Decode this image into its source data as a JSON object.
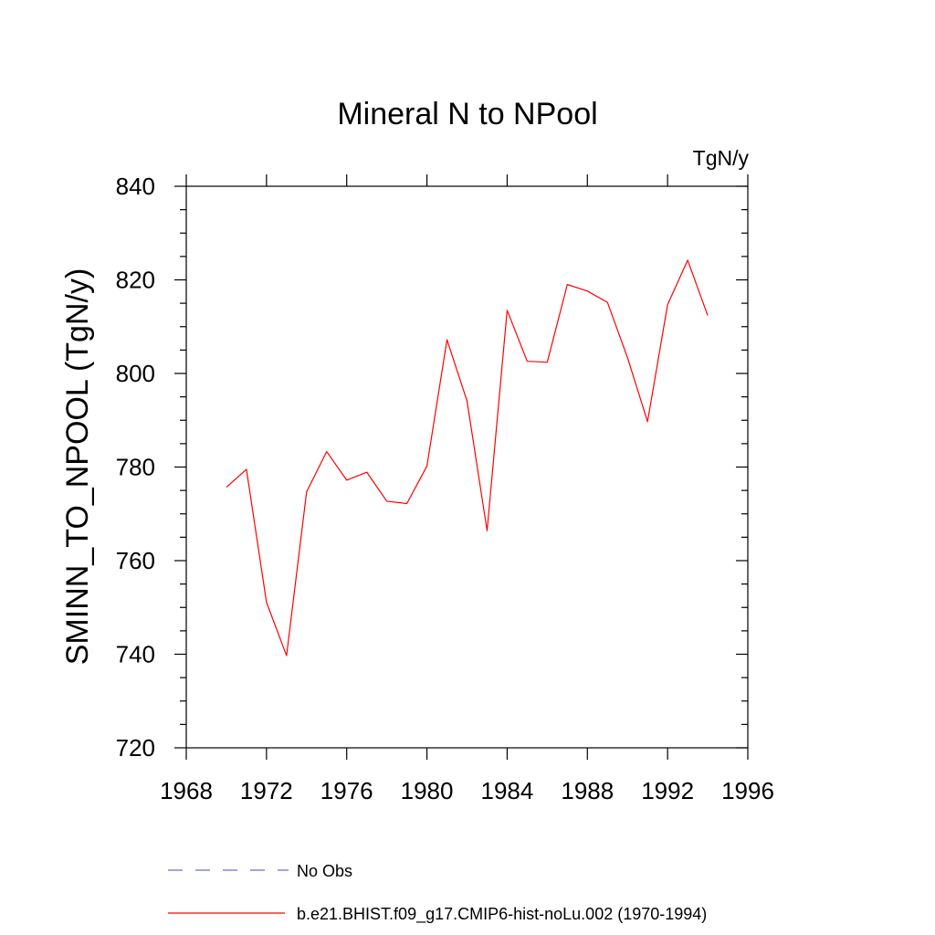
{
  "chart_data": {
    "type": "line",
    "title": "Mineral N to NPool",
    "units": "TgN/y",
    "xlabel": "",
    "ylabel": "SMINN_TO_NPOOL  (TgN/y)",
    "xlim": [
      1968,
      1996
    ],
    "ylim": [
      720,
      840
    ],
    "xticks": [
      1968,
      1972,
      1976,
      1980,
      1984,
      1988,
      1992,
      1996
    ],
    "yticks": [
      720,
      740,
      760,
      780,
      800,
      820,
      840
    ],
    "grid": false,
    "legend_position": "bottom",
    "series": [
      {
        "name": "b.e21.BHIST.f09_g17.CMIP6-hist-noLu.002 (1970-1994)",
        "color": "#ff0000",
        "style": "solid",
        "x": [
          1970,
          1971,
          1972,
          1973,
          1974,
          1975,
          1976,
          1977,
          1978,
          1979,
          1980,
          1981,
          1982,
          1983,
          1984,
          1985,
          1986,
          1987,
          1988,
          1989,
          1990,
          1991,
          1992,
          1993,
          1994
        ],
        "y": [
          775.7,
          779.5,
          751.1,
          739.7,
          774.7,
          783.3,
          777.2,
          778.9,
          772.7,
          772.2,
          780.2,
          807.2,
          794.1,
          766.4,
          813.5,
          802.6,
          802.4,
          819.0,
          817.6,
          815.2,
          803.4,
          789.7,
          814.7,
          824.2,
          812.4
        ]
      }
    ],
    "legend": [
      {
        "label": "No Obs",
        "color": "#6a6ad8",
        "style": "dashed"
      },
      {
        "label": "b.e21.BHIST.f09_g17.CMIP6-hist-noLu.002 (1970-1994)",
        "color": "#ff0000",
        "style": "solid"
      }
    ]
  }
}
